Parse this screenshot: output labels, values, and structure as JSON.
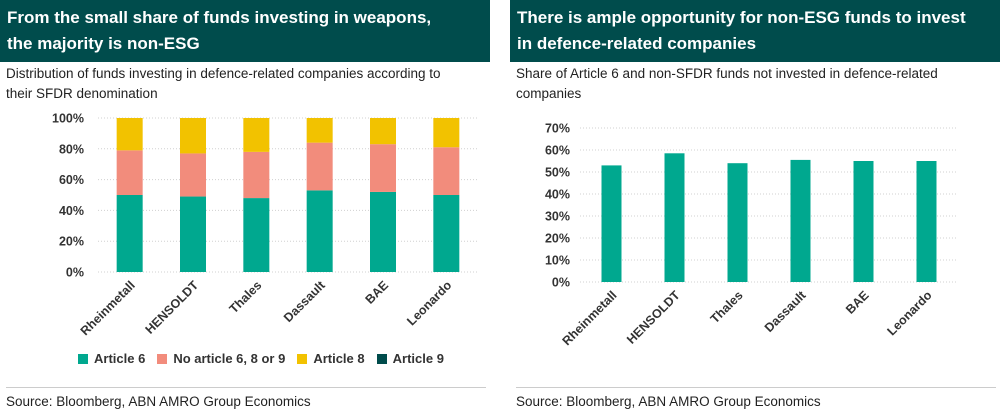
{
  "left": {
    "title_lines": [
      "From the small share of funds investing in weapons,",
      "the majority is non-ESG"
    ],
    "subtitle_lines": [
      "Distribution of funds investing in defence-related companies according to",
      "their SFDR denomination"
    ],
    "source": "Source: Bloomberg, ABN AMRO Group Economics"
  },
  "right": {
    "title_lines": [
      "There is ample opportunity for non-ESG funds to invest",
      "in defence-related companies"
    ],
    "subtitle_lines": [
      "Share of Article 6 and non-SFDR funds not invested in defence-related",
      "companies"
    ],
    "source": "Source: Bloomberg, ABN AMRO Group Economics"
  },
  "colors": {
    "title_bg": "#004c4c",
    "article6": "#00a88f",
    "no_article": "#f28c7c",
    "article8": "#f2c200",
    "article9": "#004c4c"
  },
  "chart_data": [
    {
      "type": "bar",
      "stacked": true,
      "categories": [
        "Rheinmetall",
        "HENSOLDT",
        "Thales",
        "Dassault",
        "BAE",
        "Leonardo"
      ],
      "series": [
        {
          "name": "Article 6",
          "values": [
            50,
            49,
            48,
            53,
            52,
            50
          ]
        },
        {
          "name": "No article 6, 8 or 9",
          "values": [
            29,
            28,
            30,
            31,
            31,
            31
          ]
        },
        {
          "name": "Article 8",
          "values": [
            21,
            23,
            22,
            16,
            17,
            19
          ]
        },
        {
          "name": "Article 9",
          "values": [
            0,
            0,
            0,
            0,
            0,
            0
          ]
        }
      ],
      "ylim": [
        0,
        100
      ],
      "yticks": [
        "0%",
        "20%",
        "40%",
        "60%",
        "80%",
        "100%"
      ],
      "legend_position": "bottom"
    },
    {
      "type": "bar",
      "categories": [
        "Rheinmetall",
        "HENSOLDT",
        "Thales",
        "Dassault",
        "BAE",
        "Leonardo"
      ],
      "values": [
        53,
        58.5,
        54,
        55.5,
        55,
        55
      ],
      "ylim": [
        0,
        70
      ],
      "yticks": [
        "0%",
        "10%",
        "20%",
        "30%",
        "40%",
        "50%",
        "60%",
        "70%"
      ]
    }
  ]
}
